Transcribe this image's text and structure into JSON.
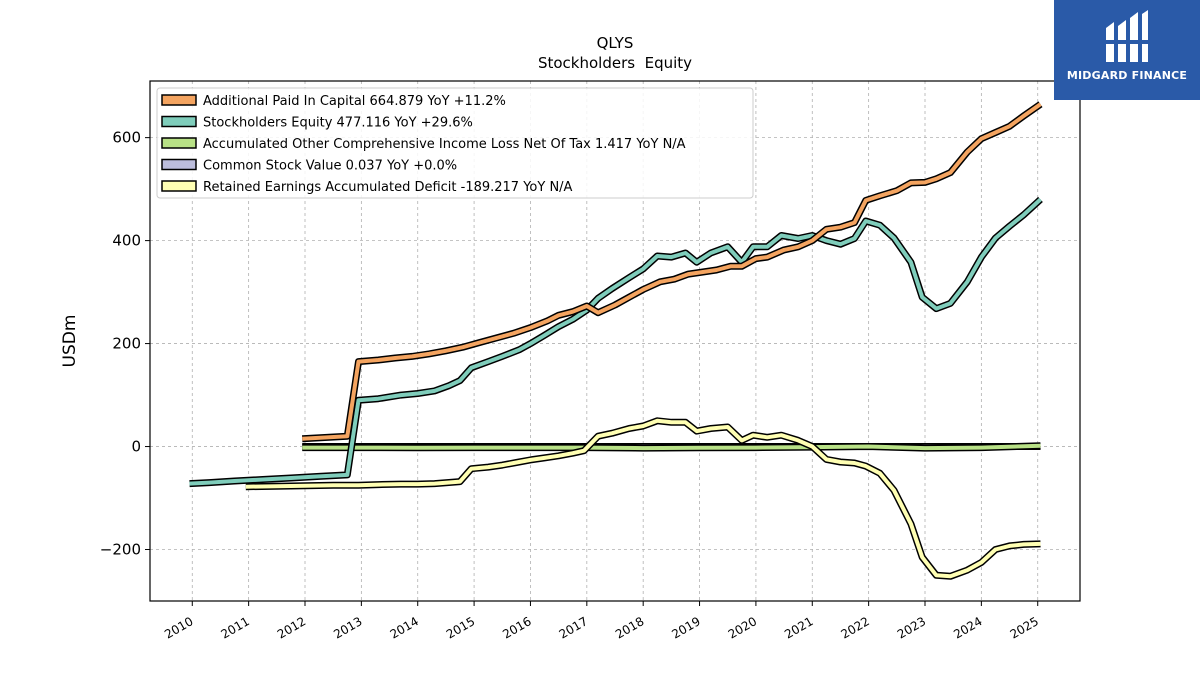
{
  "brand": {
    "name": "MIDGARD FINANCE",
    "icon": "midgard-logo-icon",
    "bg_color": "#2a5aa8"
  },
  "chart_data": {
    "type": "line",
    "title": "QLYS",
    "subtitle": "Stockholders  Equity",
    "xlabel": "",
    "ylabel": "USDm",
    "xlim": [
      2009.25,
      2025.75
    ],
    "ylim": [
      -300,
      710
    ],
    "grid": true,
    "legend_position": "top-left",
    "x_ticks": [
      "2010",
      "2011",
      "2012",
      "2013",
      "2014",
      "2015",
      "2016",
      "2017",
      "2018",
      "2019",
      "2020",
      "2021",
      "2022",
      "2023",
      "2024",
      "2025"
    ],
    "x_tick_values": [
      2010,
      2011,
      2012,
      2013,
      2014,
      2015,
      2016,
      2017,
      2018,
      2019,
      2020,
      2021,
      2022,
      2023,
      2024,
      2025
    ],
    "y_ticks": [
      -200,
      0,
      200,
      400,
      600
    ],
    "y_tick_labels": [
      "−200",
      "0",
      "200",
      "400",
      "600"
    ],
    "series": [
      {
        "name": "Additional Paid In Capital",
        "legend": "Additional Paid In Capital  664.879 YoY +11.2%",
        "color": "#f4a460",
        "points": [
          [
            2011.95,
            15
          ],
          [
            2012.75,
            20
          ],
          [
            2012.95,
            165
          ],
          [
            2013.3,
            168
          ],
          [
            2013.6,
            172
          ],
          [
            2013.9,
            175
          ],
          [
            2014.2,
            180
          ],
          [
            2014.5,
            186
          ],
          [
            2014.8,
            193
          ],
          [
            2015.1,
            202
          ],
          [
            2015.4,
            211
          ],
          [
            2015.7,
            220
          ],
          [
            2016.0,
            231
          ],
          [
            2016.3,
            244
          ],
          [
            2016.5,
            255
          ],
          [
            2016.75,
            262
          ],
          [
            2017.0,
            273
          ],
          [
            2017.2,
            260
          ],
          [
            2017.5,
            275
          ],
          [
            2017.75,
            290
          ],
          [
            2018.0,
            305
          ],
          [
            2018.3,
            320
          ],
          [
            2018.55,
            325
          ],
          [
            2018.8,
            335
          ],
          [
            2019.0,
            338
          ],
          [
            2019.3,
            343
          ],
          [
            2019.55,
            350
          ],
          [
            2019.75,
            350
          ],
          [
            2020.0,
            365
          ],
          [
            2020.2,
            368
          ],
          [
            2020.5,
            382
          ],
          [
            2020.75,
            388
          ],
          [
            2021.0,
            400
          ],
          [
            2021.25,
            422
          ],
          [
            2021.5,
            426
          ],
          [
            2021.75,
            435
          ],
          [
            2021.95,
            478
          ],
          [
            2022.2,
            487
          ],
          [
            2022.5,
            497
          ],
          [
            2022.75,
            512
          ],
          [
            2023.0,
            513
          ],
          [
            2023.2,
            520
          ],
          [
            2023.45,
            532
          ],
          [
            2023.75,
            572
          ],
          [
            2024.0,
            598
          ],
          [
            2024.25,
            610
          ],
          [
            2024.5,
            622
          ],
          [
            2024.75,
            642
          ],
          [
            2025.05,
            665
          ]
        ]
      },
      {
        "name": "Stockholders Equity",
        "legend": "Stockholders Equity  477.116 YoY +29.6%",
        "color": "#7fcdbb",
        "points": [
          [
            2009.95,
            -72
          ],
          [
            2010.3,
            -70
          ],
          [
            2010.75,
            -67
          ],
          [
            2011.25,
            -64
          ],
          [
            2011.75,
            -61
          ],
          [
            2012.25,
            -58
          ],
          [
            2012.75,
            -55
          ],
          [
            2012.95,
            90
          ],
          [
            2013.3,
            93
          ],
          [
            2013.7,
            100
          ],
          [
            2014.0,
            103
          ],
          [
            2014.3,
            108
          ],
          [
            2014.55,
            118
          ],
          [
            2014.75,
            128
          ],
          [
            2014.95,
            153
          ],
          [
            2015.25,
            165
          ],
          [
            2015.5,
            175
          ],
          [
            2015.8,
            188
          ],
          [
            2016.0,
            200
          ],
          [
            2016.25,
            216
          ],
          [
            2016.5,
            233
          ],
          [
            2016.75,
            247
          ],
          [
            2017.0,
            265
          ],
          [
            2017.2,
            288
          ],
          [
            2017.45,
            307
          ],
          [
            2017.75,
            328
          ],
          [
            2018.0,
            345
          ],
          [
            2018.25,
            370
          ],
          [
            2018.5,
            368
          ],
          [
            2018.75,
            376
          ],
          [
            2018.95,
            358
          ],
          [
            2019.2,
            376
          ],
          [
            2019.5,
            388
          ],
          [
            2019.75,
            358
          ],
          [
            2019.95,
            388
          ],
          [
            2020.2,
            388
          ],
          [
            2020.45,
            410
          ],
          [
            2020.75,
            404
          ],
          [
            2021.0,
            410
          ],
          [
            2021.25,
            400
          ],
          [
            2021.5,
            393
          ],
          [
            2021.75,
            404
          ],
          [
            2021.95,
            438
          ],
          [
            2022.2,
            430
          ],
          [
            2022.45,
            405
          ],
          [
            2022.75,
            358
          ],
          [
            2022.95,
            290
          ],
          [
            2023.2,
            268
          ],
          [
            2023.45,
            278
          ],
          [
            2023.75,
            320
          ],
          [
            2024.0,
            368
          ],
          [
            2024.25,
            405
          ],
          [
            2024.5,
            428
          ],
          [
            2024.75,
            450
          ],
          [
            2025.05,
            480
          ]
        ]
      },
      {
        "name": "Accumulated Other Comprehensive Income Loss Net Of Tax",
        "legend": "Accumulated Other Comprehensive Income Loss Net Of Tax  1.417 YoY N/A",
        "color": "#b8e186",
        "points": [
          [
            2011.95,
            -2
          ],
          [
            2013.0,
            -2
          ],
          [
            2014.0,
            -2.5
          ],
          [
            2015.0,
            -2
          ],
          [
            2016.0,
            -2
          ],
          [
            2017.0,
            -2
          ],
          [
            2018.0,
            -3
          ],
          [
            2019.0,
            -2.5
          ],
          [
            2020.0,
            -2
          ],
          [
            2021.0,
            -1
          ],
          [
            2022.0,
            0
          ],
          [
            2023.0,
            -3
          ],
          [
            2024.0,
            -2
          ],
          [
            2025.05,
            1.4
          ]
        ]
      },
      {
        "name": "Common Stock Value",
        "legend": "Common Stock Value  0.037 YoY +0.0%",
        "color": "#bcbddc",
        "points": [
          [
            2011.95,
            0
          ],
          [
            2025.05,
            0
          ]
        ]
      },
      {
        "name": "Retained Earnings Accumulated Deficit",
        "legend": "Retained Earnings Accumulated Deficit  -189.217 YoY N/A",
        "color": "#ffffb3",
        "points": [
          [
            2010.95,
            -78
          ],
          [
            2011.5,
            -77
          ],
          [
            2012.0,
            -76
          ],
          [
            2012.5,
            -75
          ],
          [
            2012.95,
            -75
          ],
          [
            2013.3,
            -74
          ],
          [
            2013.7,
            -73
          ],
          [
            2014.0,
            -73
          ],
          [
            2014.3,
            -72
          ],
          [
            2014.75,
            -68
          ],
          [
            2014.95,
            -43
          ],
          [
            2015.25,
            -40
          ],
          [
            2015.5,
            -36
          ],
          [
            2015.75,
            -31
          ],
          [
            2016.0,
            -26
          ],
          [
            2016.25,
            -22
          ],
          [
            2016.5,
            -18
          ],
          [
            2016.75,
            -13
          ],
          [
            2016.95,
            -8
          ],
          [
            2017.2,
            20
          ],
          [
            2017.45,
            26
          ],
          [
            2017.75,
            35
          ],
          [
            2018.0,
            40
          ],
          [
            2018.25,
            50
          ],
          [
            2018.5,
            47
          ],
          [
            2018.75,
            47
          ],
          [
            2018.95,
            30
          ],
          [
            2019.2,
            35
          ],
          [
            2019.5,
            38
          ],
          [
            2019.75,
            12
          ],
          [
            2019.95,
            22
          ],
          [
            2020.2,
            18
          ],
          [
            2020.45,
            22
          ],
          [
            2020.75,
            12
          ],
          [
            2021.0,
            0
          ],
          [
            2021.25,
            -25
          ],
          [
            2021.5,
            -30
          ],
          [
            2021.75,
            -32
          ],
          [
            2021.95,
            -38
          ],
          [
            2022.2,
            -52
          ],
          [
            2022.45,
            -85
          ],
          [
            2022.75,
            -150
          ],
          [
            2022.95,
            -215
          ],
          [
            2023.2,
            -250
          ],
          [
            2023.45,
            -252
          ],
          [
            2023.75,
            -240
          ],
          [
            2024.0,
            -225
          ],
          [
            2024.25,
            -200
          ],
          [
            2024.5,
            -193
          ],
          [
            2024.75,
            -190
          ],
          [
            2025.05,
            -189
          ]
        ]
      }
    ]
  }
}
